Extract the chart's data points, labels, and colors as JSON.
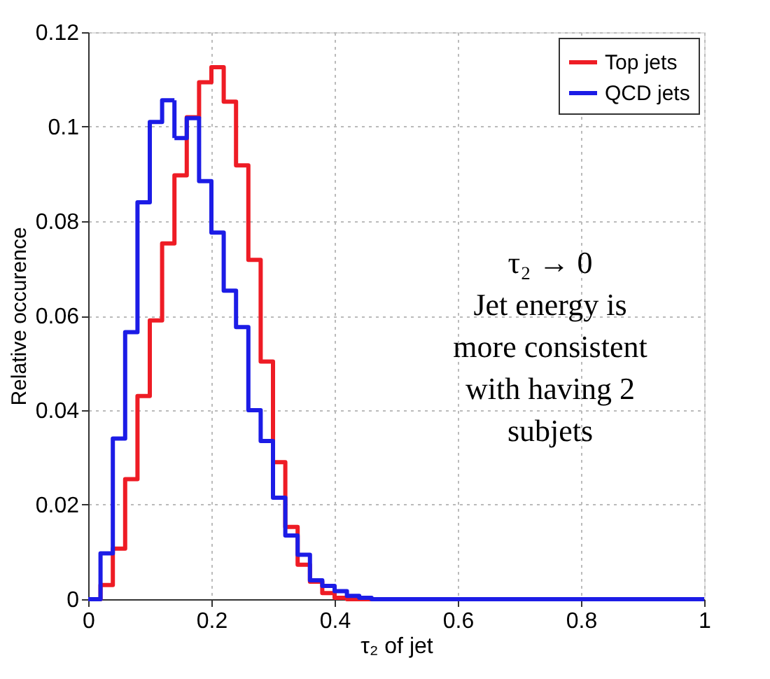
{
  "chart_data": {
    "type": "histogram",
    "xlabel": "τ₂ of jet",
    "ylabel": "Relative occurence",
    "bins": [
      0,
      0.02,
      0.04,
      0.06,
      0.08,
      0.1,
      0.12,
      0.14,
      0.16,
      0.18,
      0.2,
      0.22,
      0.24,
      0.26,
      0.28,
      0.3,
      0.32,
      0.34,
      0.36,
      0.38,
      0.4,
      0.42,
      0.44,
      0.46,
      0.48,
      0.5,
      0.52,
      0.54,
      0.56,
      0.58,
      0.6,
      0.62,
      0.64,
      0.66,
      0.68,
      0.7,
      0.72,
      0.74,
      0.76,
      0.78,
      0.8,
      0.82,
      0.84,
      0.86,
      0.88,
      0.9,
      0.92,
      0.94,
      0.96,
      0.98,
      1
    ],
    "series": [
      {
        "name": "Top jets",
        "color": "#ee1c25",
        "values": [
          0,
          0.003,
          0.0107,
          0.0254,
          0.043,
          0.059,
          0.0753,
          0.0897,
          0.102,
          0.1094,
          0.1126,
          0.1053,
          0.0918,
          0.0718,
          0.0503,
          0.029,
          0.0153,
          0.0073,
          0.0037,
          0.0013,
          0.0003,
          0,
          0,
          0,
          0,
          0,
          0,
          0,
          0,
          0,
          0,
          0,
          0,
          0,
          0,
          0,
          0,
          0,
          0,
          0,
          0,
          0,
          0,
          0,
          0,
          0,
          0,
          0,
          0,
          0
        ]
      },
      {
        "name": "QCD jets",
        "color": "#1c1ce6",
        "values": [
          0,
          0.0097,
          0.034,
          0.0565,
          0.084,
          0.101,
          0.1056,
          0.0976,
          0.1018,
          0.0885,
          0.0776,
          0.0653,
          0.0576,
          0.04,
          0.0335,
          0.0215,
          0.0135,
          0.0094,
          0.004,
          0.0028,
          0.0017,
          0.0007,
          0.0003,
          0,
          0,
          0,
          0,
          0,
          0,
          0,
          0,
          0,
          0,
          0,
          0,
          0,
          0,
          0,
          0,
          0,
          0,
          0,
          0,
          0,
          0,
          0,
          0,
          0,
          0,
          0
        ]
      }
    ],
    "xlim": [
      0,
      1
    ],
    "ylim": [
      0,
      0.12
    ],
    "xticks": [
      0,
      0.2,
      0.4,
      0.6,
      0.8,
      1
    ],
    "yticks": [
      0,
      0.02,
      0.04,
      0.06,
      0.08,
      0.1,
      0.12
    ],
    "grid": true,
    "legend": "top right",
    "line_style": "solid",
    "annotations": [
      "τ₂ → 0",
      "Jet energy is",
      "more consistent",
      "with having 2",
      "subjets"
    ]
  }
}
